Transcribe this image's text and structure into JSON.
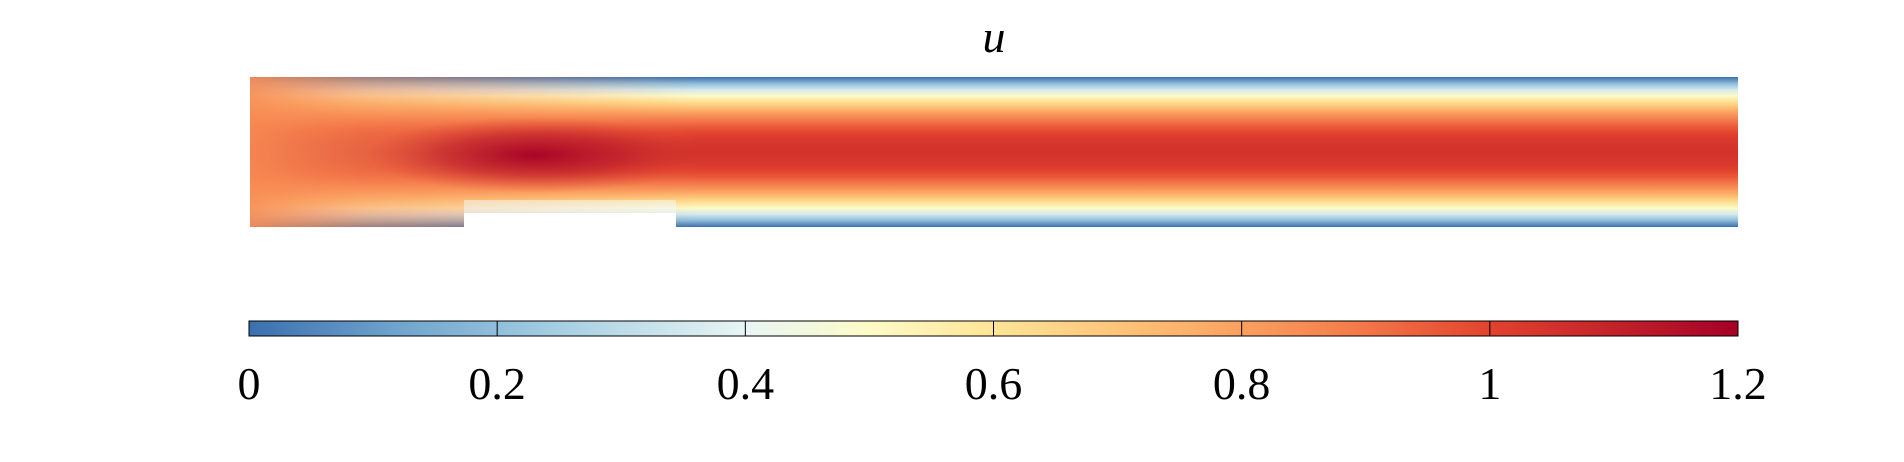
{
  "chart_data": {
    "type": "heatmap",
    "title": "u",
    "colorbar": {
      "orientation": "horizontal",
      "placement": "below",
      "range": [
        0,
        1.2
      ],
      "ticks": [
        0,
        0.2,
        0.4,
        0.6,
        0.8,
        1,
        1.2
      ],
      "tick_labels": [
        "0",
        "0.2",
        "0.4",
        "0.6",
        "0.8",
        "1",
        "1.2"
      ],
      "colormap": [
        {
          "value": 0.0,
          "color": "#3b6faf"
        },
        {
          "value": 0.12,
          "color": "#6fa4cd"
        },
        {
          "value": 0.25,
          "color": "#a6cfe3"
        },
        {
          "value": 0.4,
          "color": "#e8f5f4"
        },
        {
          "value": 0.5,
          "color": "#fdfbc7"
        },
        {
          "value": 0.6,
          "color": "#fee597"
        },
        {
          "value": 0.75,
          "color": "#fdb46b"
        },
        {
          "value": 0.88,
          "color": "#f6804d"
        },
        {
          "value": 1.0,
          "color": "#e2432e"
        },
        {
          "value": 1.2,
          "color": "#a50026"
        }
      ]
    },
    "field": {
      "domain": "channel with a rectangular notch in the lower wall",
      "inlet_velocity": 0.85,
      "core_velocity_downstream": 1.05,
      "max_velocity": 1.2,
      "max_velocity_location": "above the obstacle",
      "wall_velocity": 0
    }
  }
}
